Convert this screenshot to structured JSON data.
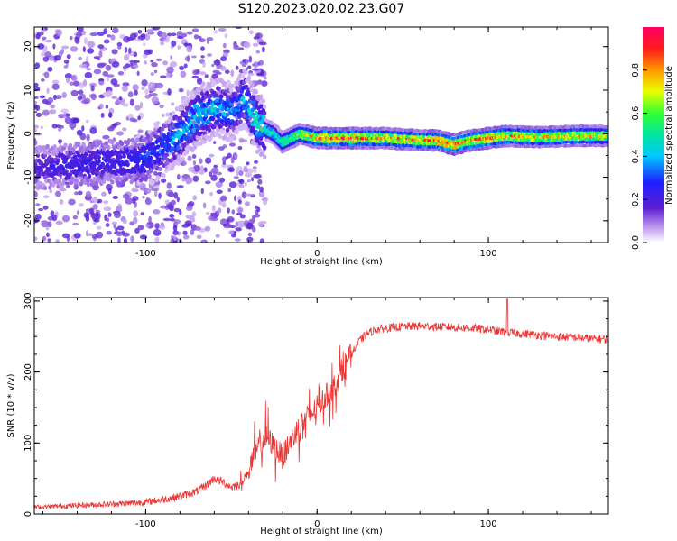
{
  "title": "S120.2023.020.02.23.G07",
  "colors": {
    "snr_line": "#ee3333",
    "axis": "#000000"
  },
  "colorbar": {
    "label": "Normalized spectral amplitude",
    "range": [
      0,
      1
    ],
    "ticks": [
      "0.0",
      "0.2",
      "0.4",
      "0.6",
      "0.8"
    ],
    "tick_values": [
      0.0,
      0.2,
      0.4,
      0.6,
      0.8
    ]
  },
  "chart_data": [
    {
      "type": "heatmap",
      "xlabel": "Height of straight line (km)",
      "ylabel": "Frequency (Hz)",
      "xlim": [
        -165,
        170
      ],
      "ylim": [
        -25,
        24.5
      ],
      "x_ticks": [
        "-100",
        "0",
        "100"
      ],
      "x_tick_values": [
        -100,
        0,
        100
      ],
      "y_ticks": [
        "20",
        "10",
        "0",
        "-10",
        "-20"
      ],
      "y_tick_values": [
        20,
        10,
        0,
        -10,
        -20
      ],
      "ridge_x": [
        -165,
        -140,
        -120,
        -100,
        -90,
        -80,
        -70,
        -60,
        -50,
        -42,
        -35,
        -30,
        -25,
        -20,
        -15,
        -10,
        0,
        20,
        40,
        60,
        70,
        80,
        90,
        100,
        110,
        130,
        150,
        170
      ],
      "ridge_y": [
        -8,
        -7,
        -6.5,
        -6,
        -3,
        0,
        4,
        6,
        5,
        8,
        2.5,
        1,
        0,
        -2,
        -1,
        0,
        -1,
        -1,
        -1,
        -1.5,
        -1.5,
        -2.5,
        -1.5,
        -1,
        -0.5,
        -0.8,
        -0.5,
        -0.5
      ],
      "ridge_amplitude": [
        0.2,
        0.25,
        0.25,
        0.3,
        0.35,
        0.4,
        0.45,
        0.45,
        0.4,
        0.4,
        0.55,
        0.5,
        0.55,
        0.6,
        0.65,
        0.7,
        0.85,
        0.9,
        0.8,
        0.85,
        0.9,
        0.95,
        0.85,
        0.9,
        0.85,
        0.8,
        0.8,
        0.75
      ],
      "grid": false
    },
    {
      "type": "line",
      "xlabel": "Height of straight line (km)",
      "ylabel": "SNR (10 * v/v)",
      "xlim": [
        -165,
        170
      ],
      "ylim": [
        0,
        305
      ],
      "x_ticks": [
        "-100",
        "0",
        "100"
      ],
      "x_tick_values": [
        -100,
        0,
        100
      ],
      "y_ticks": [
        "0",
        "100",
        "200",
        "300"
      ],
      "y_tick_values": [
        0,
        100,
        200,
        300
      ],
      "series": [
        {
          "x": [
            -165,
            -150,
            -140,
            -130,
            -120,
            -110,
            -100,
            -90,
            -80,
            -70,
            -65,
            -60,
            -55,
            -50,
            -45,
            -40,
            -38,
            -35,
            -30,
            -25,
            -20,
            -15,
            -10,
            -5,
            0,
            5,
            10,
            15,
            20,
            25,
            30,
            35,
            40,
            50,
            60,
            70,
            80,
            90,
            100,
            105,
            110,
            115,
            120,
            130,
            140,
            150,
            160,
            170
          ],
          "y": [
            10,
            11,
            12,
            13,
            14,
            15,
            17,
            20,
            25,
            32,
            40,
            50,
            45,
            38,
            42,
            60,
            75,
            90,
            110,
            95,
            80,
            105,
            125,
            135,
            150,
            165,
            180,
            205,
            225,
            245,
            255,
            260,
            262,
            264,
            265,
            264,
            263,
            262,
            260,
            258,
            256,
            255,
            254,
            252,
            250,
            249,
            247,
            246
          ]
        }
      ],
      "spike_x": 111,
      "spike_y": 303,
      "grid": false
    }
  ]
}
